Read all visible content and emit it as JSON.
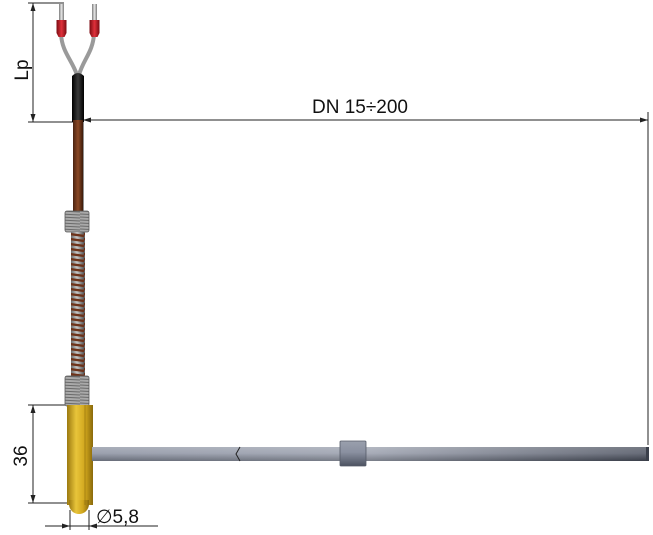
{
  "dimensions": {
    "cable_length": "Lp",
    "pipe_diameter_range": "DN 15÷200",
    "sleeve_height": "36",
    "probe_diameter": "∅5,8"
  },
  "colors": {
    "dimension_line": "#222222",
    "wire_insulation": "#a8a8a8",
    "wire_ferrule": "#c8202a",
    "heat_shrink": "#151515",
    "cable_sheath": "#7a3c1e",
    "spring": "#8f8f8f",
    "sleeve_brass": "#d2a91c",
    "pipe_steel": "#6f7684"
  }
}
